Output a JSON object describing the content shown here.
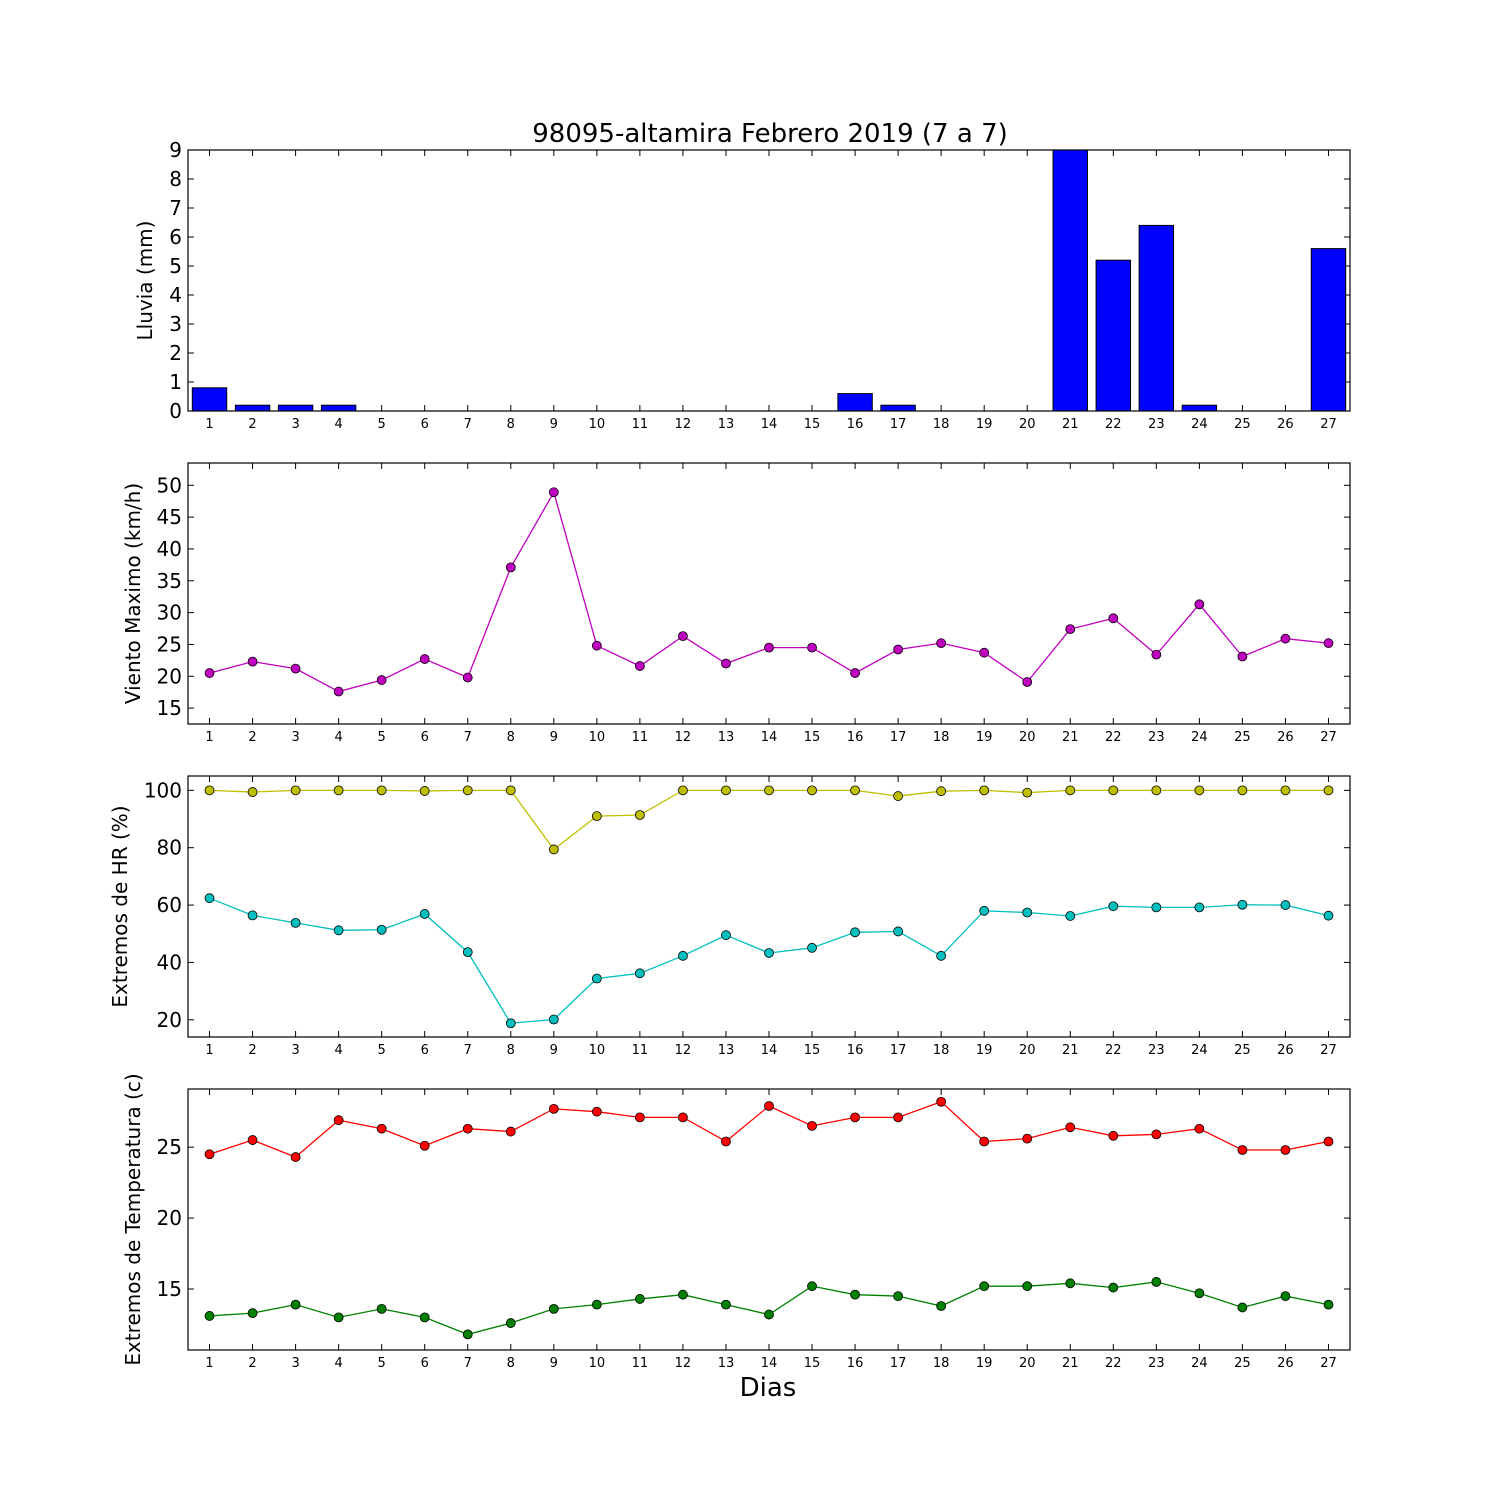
{
  "figure": {
    "title": "98095-altamira Febrero 2019  (7 a 7)",
    "xlabel": "Dias"
  },
  "chart_data": [
    {
      "type": "bar",
      "ylabel": "Lluvia (mm)",
      "ylim": [
        0,
        9
      ],
      "yticks": [
        0,
        1,
        2,
        3,
        4,
        5,
        6,
        7,
        8,
        9
      ],
      "categories": [
        "1",
        "2",
        "3",
        "4",
        "5",
        "6",
        "7",
        "8",
        "9",
        "10",
        "11",
        "12",
        "13",
        "14",
        "15",
        "16",
        "17",
        "18",
        "19",
        "20",
        "21",
        "22",
        "23",
        "24",
        "25",
        "26",
        "27"
      ],
      "values": [
        0.8,
        0.2,
        0.2,
        0.2,
        0,
        0,
        0,
        0,
        0,
        0,
        0,
        0,
        0,
        0,
        0,
        0.6,
        0.2,
        0,
        0,
        0,
        9.0,
        5.2,
        6.4,
        0.2,
        0,
        0,
        5.6
      ],
      "color": "#0000ff"
    },
    {
      "type": "line",
      "ylabel": "Viento Maximo (km/h)",
      "ylim": [
        12.5,
        53.5
      ],
      "yticks": [
        15,
        20,
        25,
        30,
        35,
        40,
        45,
        50
      ],
      "x": [
        1,
        2,
        3,
        4,
        5,
        6,
        7,
        8,
        9,
        10,
        11,
        12,
        13,
        14,
        15,
        16,
        17,
        18,
        19,
        20,
        21,
        22,
        23,
        24,
        25,
        26,
        27
      ],
      "series": [
        {
          "values": [
            20.5,
            22.3,
            21.2,
            17.6,
            19.4,
            22.7,
            19.8,
            37.1,
            48.9,
            24.8,
            21.6,
            26.3,
            22.0,
            24.5,
            24.5,
            20.5,
            24.2,
            25.2,
            23.7,
            19.1,
            27.4,
            29.1,
            23.4,
            31.3,
            23.1,
            25.9,
            25.2
          ],
          "color": "#bf00bf"
        }
      ]
    },
    {
      "type": "line",
      "ylabel": "Extremos de HR (%)",
      "ylim": [
        14,
        105
      ],
      "yticks": [
        20,
        40,
        60,
        80,
        100
      ],
      "x": [
        1,
        2,
        3,
        4,
        5,
        6,
        7,
        8,
        9,
        10,
        11,
        12,
        13,
        14,
        15,
        16,
        17,
        18,
        19,
        20,
        21,
        22,
        23,
        24,
        25,
        26,
        27
      ],
      "series": [
        {
          "values": [
            100,
            99.4,
            100,
            100,
            100,
            99.8,
            100,
            100,
            79.4,
            91.0,
            91.4,
            100,
            100,
            100,
            100,
            100,
            98.0,
            99.7,
            100,
            99.2,
            100,
            100,
            100,
            100,
            100,
            100,
            100
          ],
          "color": "#bfbf00"
        },
        {
          "values": [
            62.4,
            56.4,
            53.8,
            51.2,
            51.4,
            56.9,
            43.6,
            18.8,
            20.1,
            34.4,
            36.2,
            42.3,
            49.5,
            43.3,
            45.1,
            50.5,
            50.8,
            42.3,
            58.0,
            57.4,
            56.2,
            59.6,
            59.2,
            59.2,
            60.1,
            60.0,
            56.3
          ],
          "color": "#00bfbf"
        }
      ]
    },
    {
      "type": "line",
      "ylabel": "Extremos de Temperatura (c)",
      "ylim": [
        10.7,
        29.1
      ],
      "yticks": [
        15,
        20,
        25
      ],
      "x": [
        1,
        2,
        3,
        4,
        5,
        6,
        7,
        8,
        9,
        10,
        11,
        12,
        13,
        14,
        15,
        16,
        17,
        18,
        19,
        20,
        21,
        22,
        23,
        24,
        25,
        26,
        27
      ],
      "series": [
        {
          "values": [
            24.5,
            25.5,
            24.3,
            26.9,
            26.3,
            25.1,
            26.3,
            26.1,
            27.7,
            27.5,
            27.1,
            27.1,
            25.4,
            27.9,
            26.5,
            27.1,
            27.1,
            28.2,
            25.4,
            25.6,
            26.4,
            25.8,
            25.9,
            26.3,
            24.8,
            24.8,
            25.4
          ],
          "color": "#ff0000"
        },
        {
          "values": [
            13.1,
            13.3,
            13.9,
            13.0,
            13.6,
            13.0,
            11.8,
            12.6,
            13.6,
            13.9,
            14.3,
            14.6,
            13.9,
            13.2,
            15.2,
            14.6,
            14.5,
            13.8,
            15.2,
            15.2,
            15.4,
            15.1,
            15.5,
            14.7,
            13.7,
            14.5,
            13.9
          ],
          "color": "#008000"
        }
      ]
    }
  ]
}
